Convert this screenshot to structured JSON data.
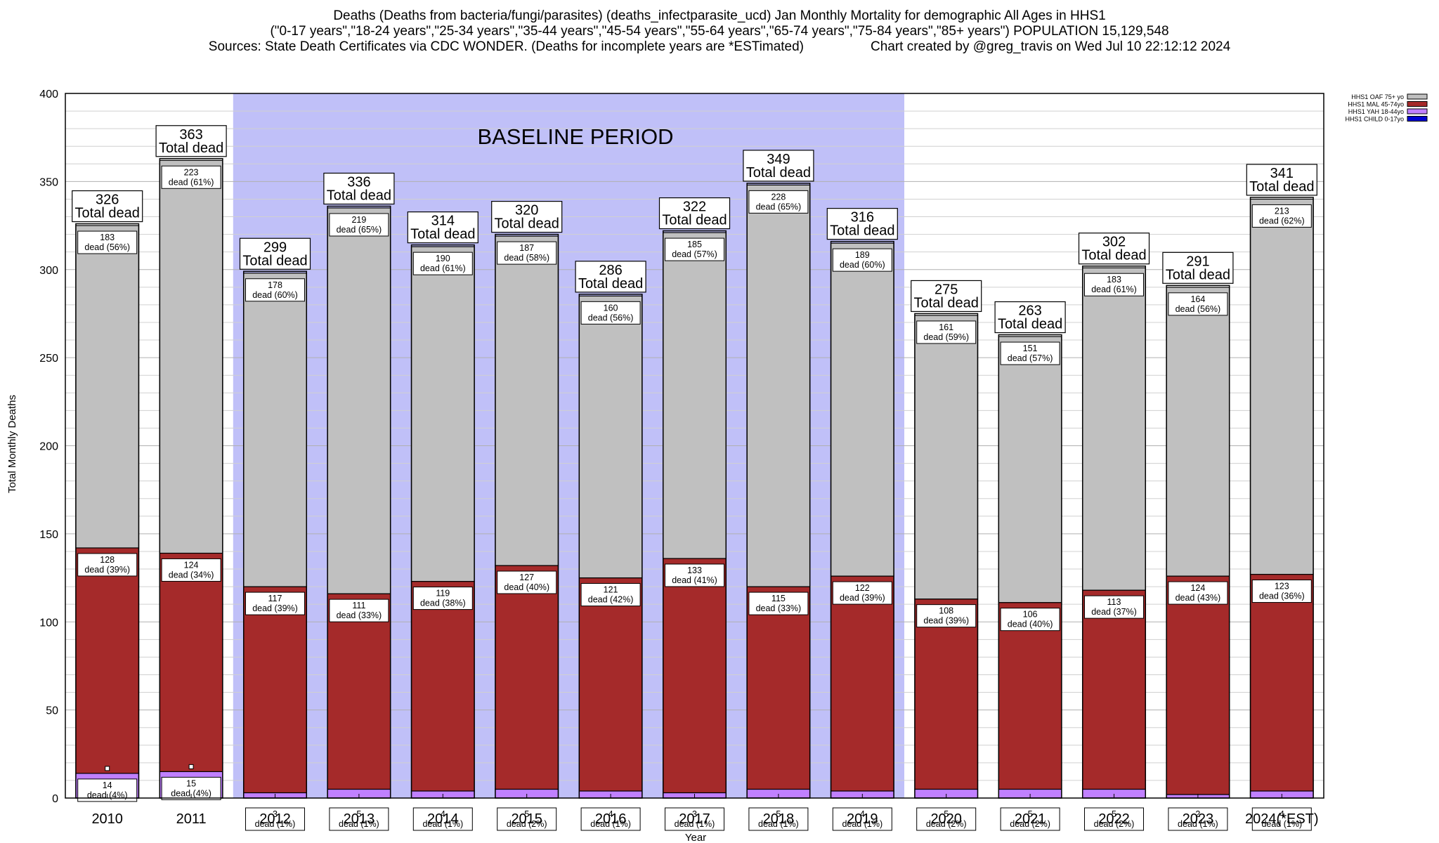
{
  "title": {
    "line1": "Deaths (Deaths from bacteria/fungi/parasites) (deaths_infectparasite_ucd) Jan Monthly Mortality for demographic All Ages in HHS1",
    "line2": "(\"0-17 years\",\"18-24 years\",\"25-34 years\",\"35-44 years\",\"45-54 years\",\"55-64 years\",\"65-74 years\",\"75-84 years\",\"85+ years\") POPULATION 15,129,548",
    "line3_sources": "Sources: State Death Certificates via CDC WONDER. (Deaths for incomplete years are *ESTimated)",
    "line3_credit": "Chart created by @greg_travis on Wed Jul 10 22:12:12 2024"
  },
  "colors": {
    "background_band": "#c0c0f8",
    "oaf": "#c0c0c0",
    "mal": "#a52a2a",
    "yah": "#c080ff",
    "child": "#0000d0"
  },
  "chart_data": {
    "type": "bar",
    "stacked": true,
    "xlabel": "Year",
    "ylabel": "Total Monthly Deaths",
    "ylim": [
      0,
      400
    ],
    "yticks": [
      0,
      50,
      100,
      150,
      200,
      250,
      300,
      350,
      400
    ],
    "grid": true,
    "legend_position": "top-right",
    "band_label": "BASELINE PERIOD",
    "band_categories": [
      "2012",
      "2019"
    ],
    "total_suffix": "Total dead",
    "seg_suffix": "dead",
    "categories": [
      "2010",
      "2011",
      "2012",
      "2013",
      "2014",
      "2015",
      "2016",
      "2017",
      "2018",
      "2019",
      "2020",
      "2021",
      "2022",
      "2023",
      "2024(*EST)"
    ],
    "series": [
      {
        "name": "HHS1 CHILD 0-17yo",
        "key": "child",
        "values": [
          0,
          0,
          0,
          0,
          0,
          0,
          0,
          0,
          0,
          0,
          0,
          0,
          0,
          0,
          0
        ],
        "labels": [
          "",
          "",
          "",
          "",
          "",
          "",
          "",
          "",
          "",
          "",
          "",
          "",
          "",
          "",
          ""
        ]
      },
      {
        "name": "HHS1 YAH 18-44yo",
        "key": "yah",
        "values": [
          14,
          15,
          3,
          5,
          4,
          5,
          4,
          3,
          5,
          4,
          5,
          5,
          5,
          2,
          4
        ],
        "labels": [
          "(4%)",
          "(4%)",
          "(1%)",
          "(1%)",
          "(1%)",
          "(2%)",
          "(1%)",
          "(1%)",
          "(1%)",
          "(1%)",
          "(2%)",
          "(2%)",
          "(2%)",
          "(1%)",
          "(1%)"
        ]
      },
      {
        "name": "HHS1 MAL 45-74yo",
        "key": "mal",
        "values": [
          128,
          124,
          117,
          111,
          119,
          127,
          121,
          133,
          115,
          122,
          108,
          106,
          113,
          124,
          123
        ],
        "labels": [
          "(39%)",
          "(34%)",
          "(39%)",
          "(33%)",
          "(38%)",
          "(40%)",
          "(42%)",
          "(41%)",
          "(33%)",
          "(39%)",
          "(39%)",
          "(40%)",
          "(37%)",
          "(43%)",
          "(36%)"
        ]
      },
      {
        "name": "HHS1 OAF 75+ yo",
        "key": "oaf",
        "values": [
          183,
          223,
          178,
          219,
          190,
          187,
          160,
          185,
          228,
          189,
          161,
          151,
          183,
          164,
          213
        ],
        "labels": [
          "(56%)",
          "(61%)",
          "(60%)",
          "(65%)",
          "(61%)",
          "(58%)",
          "(56%)",
          "(57%)",
          "(65%)",
          "(60%)",
          "(59%)",
          "(57%)",
          "(61%)",
          "(56%)",
          "(62%)"
        ]
      }
    ],
    "totals": [
      326,
      363,
      299,
      336,
      314,
      320,
      286,
      322,
      349,
      316,
      275,
      263,
      302,
      291,
      341
    ]
  }
}
